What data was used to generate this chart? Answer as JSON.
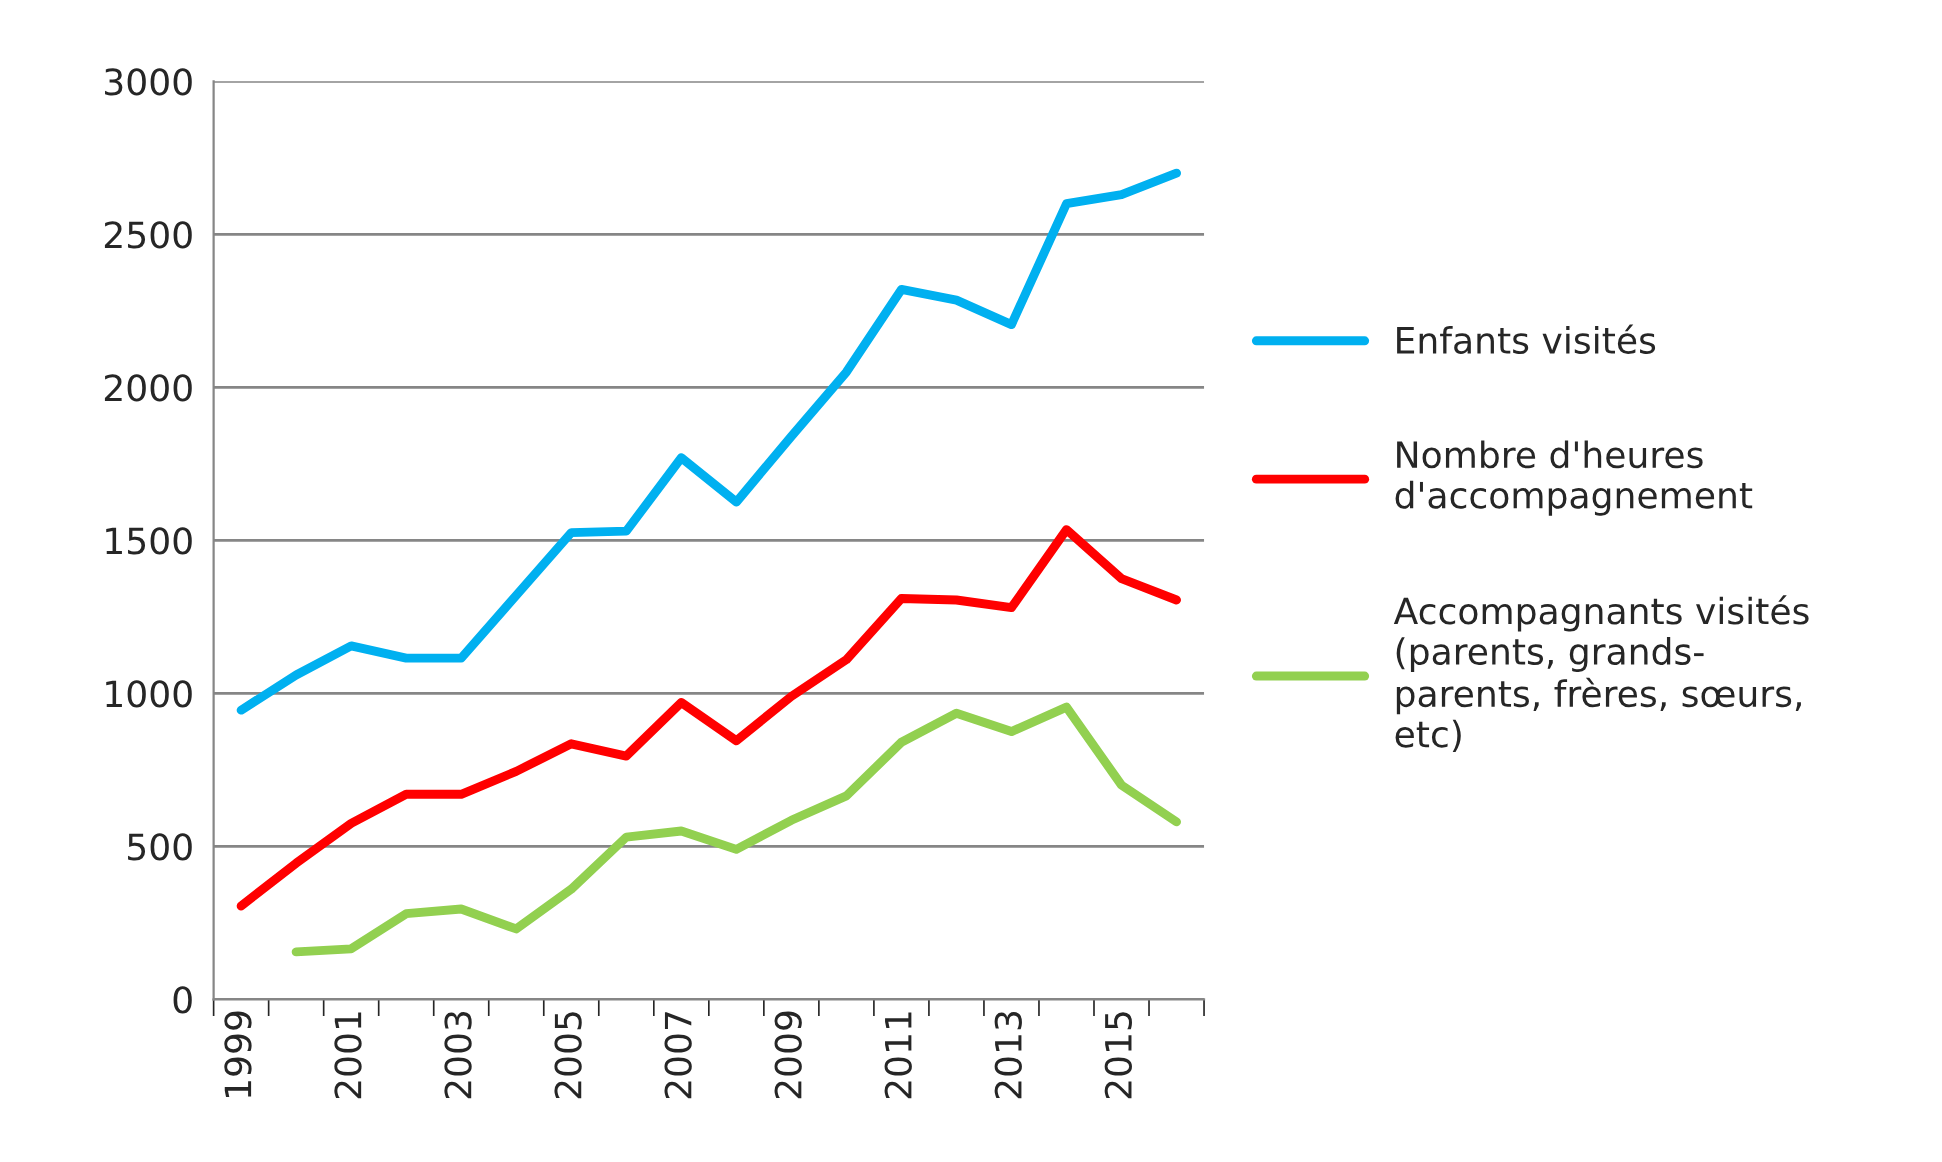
{
  "chart_data": {
    "type": "line",
    "categories": [
      "1999",
      null,
      "2001",
      null,
      "2003",
      null,
      "2005",
      null,
      "2007",
      null,
      "2009",
      null,
      "2011",
      null,
      "2013",
      null,
      "2015",
      null
    ],
    "series": [
      {
        "name": "Enfants visités",
        "color": "#00b0f0",
        "values": [
          945,
          1060,
          1155,
          1115,
          1115,
          1320,
          1525,
          1530,
          1770,
          1625,
          1840,
          2050,
          2320,
          2285,
          2205,
          2600,
          2630,
          2700
        ]
      },
      {
        "name": "Nombre d'heures\nd'accompagnement",
        "color": "#ff0000",
        "values": [
          305,
          445,
          575,
          670,
          670,
          745,
          835,
          795,
          970,
          845,
          990,
          1110,
          1310,
          1305,
          1280,
          1535,
          1375,
          1305
        ]
      },
      {
        "name": "Accompagnants visités\n(parents, grands-\nparents, frères, sœurs,\netc)",
        "color": "#92d050",
        "values": [
          null,
          155,
          165,
          280,
          295,
          230,
          360,
          530,
          550,
          490,
          585,
          665,
          840,
          935,
          875,
          955,
          700,
          580
        ]
      }
    ],
    "ylim": [
      0,
      3000
    ],
    "yticks": [
      0,
      500,
      1000,
      1500,
      2000,
      2500,
      3000
    ],
    "grid": "y",
    "legend": "right",
    "marker": "none",
    "line_style": "solid"
  }
}
